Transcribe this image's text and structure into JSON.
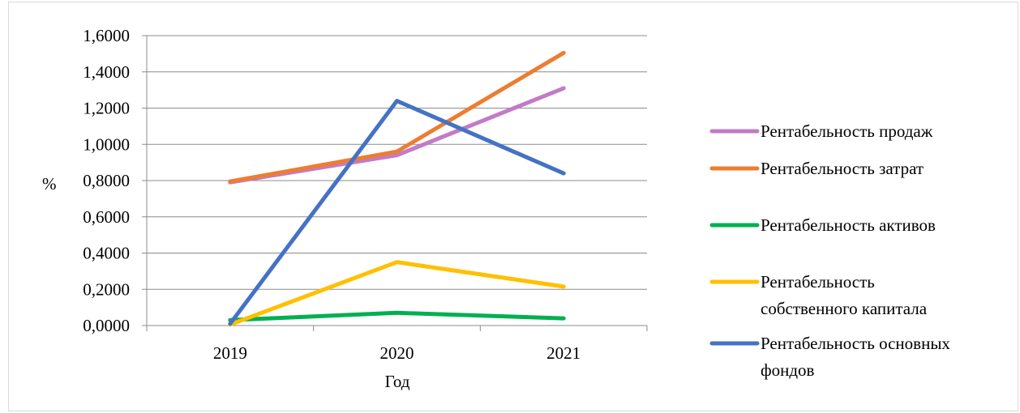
{
  "chart_data": {
    "type": "line",
    "title": "",
    "xlabel": "Год",
    "ylabel": "%",
    "categories": [
      "2019",
      "2020",
      "2021"
    ],
    "ylim": [
      0,
      1.6
    ],
    "yticks": [
      "0,0000",
      "0,2000",
      "0,4000",
      "0,6000",
      "0,8000",
      "1,0000",
      "1,2000",
      "1,4000",
      "1,6000"
    ],
    "grid": true,
    "legend_position": "right",
    "series": [
      {
        "name": "Рентабельность продаж",
        "values": [
          0.79,
          0.94,
          1.31
        ],
        "color": "#c27bc7",
        "legend_lines": [
          "Рентабельность продаж"
        ]
      },
      {
        "name": "Рентабельность затрат",
        "values": [
          0.795,
          0.96,
          1.505
        ],
        "color": "#ed7d31",
        "legend_lines": [
          "Рентабельность затрат"
        ]
      },
      {
        "name": "Рентабельность активов",
        "values": [
          0.03,
          0.07,
          0.04
        ],
        "color": "#00b050",
        "legend_lines": [
          "Рентабельность активов"
        ]
      },
      {
        "name": "Рентабельность собственного капитала",
        "values": [
          0.005,
          0.35,
          0.215
        ],
        "color": "#ffc000",
        "legend_lines": [
          "Рентабельность",
          "собственного капитала"
        ]
      },
      {
        "name": "Рентабельность основных фондов",
        "values": [
          0.01,
          1.24,
          0.84
        ],
        "color": "#4472c4",
        "legend_lines": [
          "Рентабельность основных",
          "фондов"
        ]
      }
    ]
  }
}
